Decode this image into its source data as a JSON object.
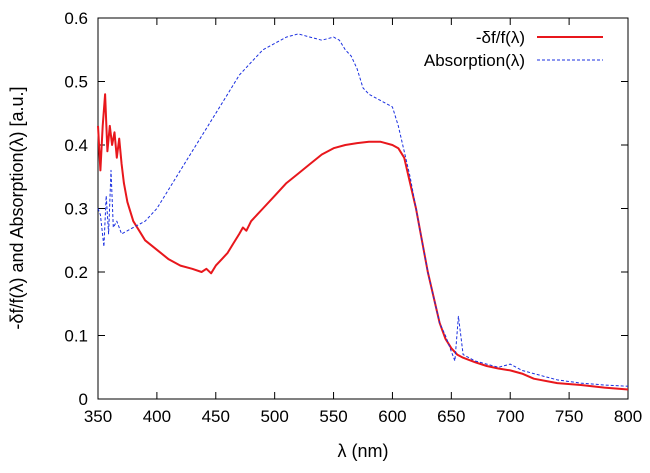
{
  "chart_data": {
    "type": "line",
    "title": "",
    "xlabel": "λ (nm)",
    "ylabel": "-δf/f(λ) and Absorption(λ) [a.u.]",
    "xlim": [
      350,
      800
    ],
    "ylim": [
      0,
      0.6
    ],
    "xticks": [
      "350",
      "400",
      "450",
      "500",
      "550",
      "600",
      "650",
      "700",
      "750",
      "800"
    ],
    "yticks": [
      "0",
      "0.1",
      "0.2",
      "0.3",
      "0.4",
      "0.5",
      "0.6"
    ],
    "xtick_values": [
      350,
      400,
      450,
      500,
      550,
      600,
      650,
      700,
      750,
      800
    ],
    "ytick_values": [
      0,
      0.1,
      0.2,
      0.3,
      0.4,
      0.5,
      0.6
    ],
    "grid": false,
    "legend_position": "top-right",
    "series": [
      {
        "name": "-δf/f(λ)",
        "color": "#e8171c",
        "style": "solid",
        "x": [
          350,
          352,
          354,
          356,
          358,
          360,
          362,
          364,
          366,
          368,
          370,
          372,
          375,
          380,
          385,
          390,
          400,
          410,
          420,
          430,
          438,
          442,
          446,
          450,
          455,
          460,
          465,
          470,
          473,
          476,
          480,
          485,
          490,
          500,
          510,
          520,
          530,
          540,
          550,
          560,
          570,
          580,
          590,
          600,
          605,
          610,
          615,
          620,
          625,
          630,
          635,
          640,
          645,
          650,
          655,
          660,
          670,
          680,
          690,
          700,
          710,
          720,
          740,
          760,
          780,
          800
        ],
        "y": [
          0.43,
          0.36,
          0.43,
          0.48,
          0.39,
          0.43,
          0.4,
          0.42,
          0.38,
          0.41,
          0.37,
          0.34,
          0.31,
          0.28,
          0.265,
          0.25,
          0.235,
          0.22,
          0.21,
          0.205,
          0.2,
          0.205,
          0.198,
          0.21,
          0.22,
          0.23,
          0.245,
          0.26,
          0.27,
          0.265,
          0.28,
          0.29,
          0.3,
          0.32,
          0.34,
          0.355,
          0.37,
          0.385,
          0.395,
          0.4,
          0.403,
          0.405,
          0.405,
          0.4,
          0.395,
          0.38,
          0.34,
          0.3,
          0.25,
          0.2,
          0.16,
          0.12,
          0.095,
          0.08,
          0.07,
          0.065,
          0.058,
          0.052,
          0.048,
          0.045,
          0.04,
          0.032,
          0.025,
          0.022,
          0.018,
          0.015
        ]
      },
      {
        "name": "Absorption(λ)",
        "color": "#1a2fe0",
        "style": "dashed",
        "x": [
          350,
          352,
          355,
          357,
          359,
          361,
          363,
          366,
          370,
          380,
          390,
          400,
          410,
          420,
          430,
          440,
          450,
          460,
          470,
          480,
          490,
          500,
          510,
          520,
          530,
          540,
          550,
          555,
          560,
          565,
          570,
          575,
          580,
          590,
          600,
          605,
          610,
          615,
          620,
          625,
          630,
          635,
          640,
          645,
          650,
          653,
          656,
          658,
          660,
          665,
          670,
          680,
          690,
          700,
          710,
          720,
          740,
          760,
          780,
          800
        ],
        "y": [
          0.3,
          0.29,
          0.24,
          0.32,
          0.26,
          0.36,
          0.27,
          0.28,
          0.26,
          0.27,
          0.28,
          0.3,
          0.33,
          0.36,
          0.39,
          0.42,
          0.45,
          0.48,
          0.51,
          0.53,
          0.55,
          0.56,
          0.57,
          0.575,
          0.57,
          0.565,
          0.57,
          0.565,
          0.55,
          0.54,
          0.52,
          0.49,
          0.48,
          0.47,
          0.46,
          0.43,
          0.39,
          0.35,
          0.3,
          0.25,
          0.2,
          0.16,
          0.12,
          0.1,
          0.075,
          0.06,
          0.13,
          0.1,
          0.07,
          0.065,
          0.06,
          0.055,
          0.05,
          0.055,
          0.045,
          0.04,
          0.03,
          0.025,
          0.022,
          0.02
        ]
      }
    ]
  }
}
